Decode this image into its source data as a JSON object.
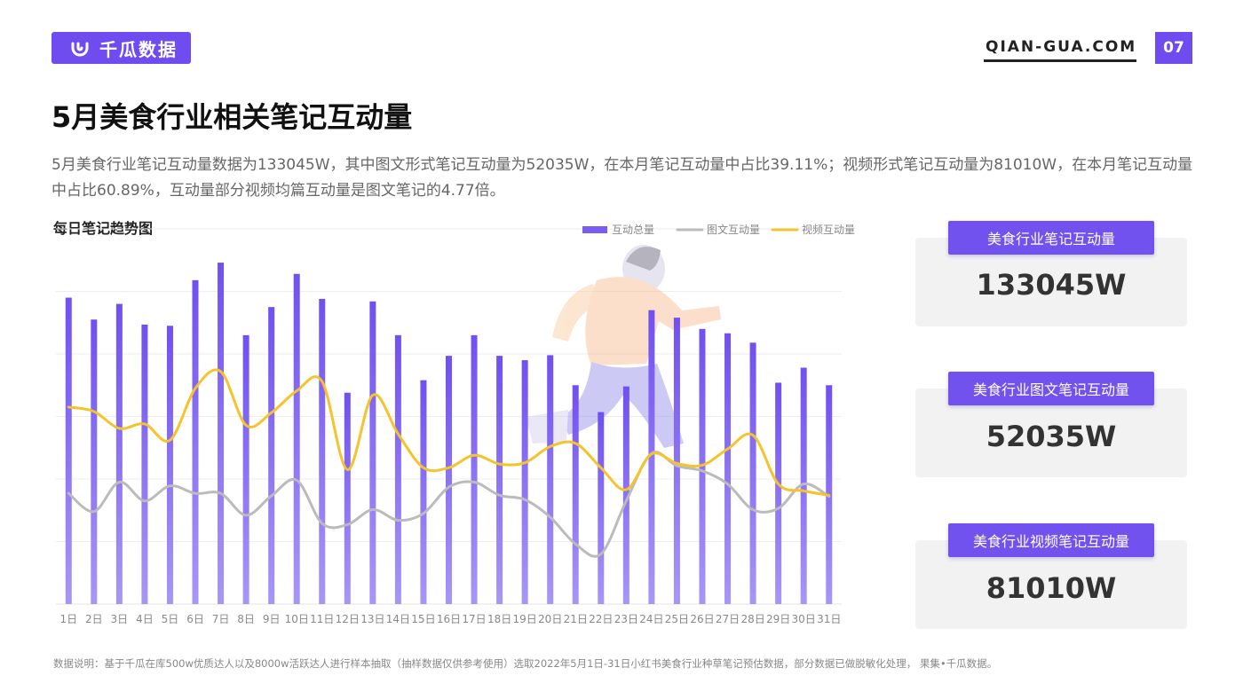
{
  "header": {
    "logo_text": "千瓜数据",
    "site": "QIAN-GUA.COM",
    "page_number": "07",
    "brand_color": "#6f4cf0"
  },
  "title": "5月美食行业相关笔记互动量",
  "description": "5月美食行业笔记互动量数据为133045W，其中图文形式笔记互动量为52035W，在本月笔记互动量中占比39.11%；视频形式笔记互动量为81010W，在本月笔记互动量中占比60.89%，互动量部分视频均篇互动量是图文笔记的4.77倍。",
  "chart_title": "每日笔记趋势图",
  "cards": [
    {
      "label": "美食行业笔记互动量",
      "value": "133045W"
    },
    {
      "label": "美食行业图文笔记互动量",
      "value": "52035W"
    },
    {
      "label": "美食行业视频笔记互动量",
      "value": "81010W"
    }
  ],
  "footnote": "数据说明：基于千瓜在库500w优质达人以及8000w活跃达人进行样本抽取（抽样数据仅供参考使用）选取2022年5月1日-31日小红书美食行业种草笔记预估数据，部分数据已做脱敏化处理， 果集•千瓜数据。",
  "chart_data": {
    "type": "bar",
    "categories": [
      "1日",
      "2日",
      "3日",
      "4日",
      "5日",
      "6日",
      "7日",
      "8日",
      "9日",
      "10日",
      "11日",
      "12日",
      "13日",
      "14日",
      "15日",
      "16日",
      "17日",
      "18日",
      "19日",
      "20日",
      "21日",
      "22日",
      "23日",
      "24日",
      "25日",
      "26日",
      "27日",
      "28日",
      "29日",
      "30日",
      "31日"
    ],
    "ylim": [
      0,
      60
    ],
    "grid": true,
    "legend_position": "top-right",
    "series": [
      {
        "name": "互动总量",
        "kind": "bar",
        "color": "#7b5cf0",
        "values": [
          49,
          45.5,
          48,
          44.7,
          44.5,
          51.8,
          54.6,
          43,
          47.5,
          52.8,
          48.8,
          33.8,
          48.4,
          43,
          35.8,
          39.7,
          43,
          39.7,
          39,
          39.8,
          35,
          30.7,
          34.8,
          47,
          45.8,
          44,
          43.3,
          41.8,
          35.4,
          37.8,
          35
        ]
      },
      {
        "name": "图文互动量",
        "kind": "line",
        "color": "#bbbbbb",
        "values": [
          17.7,
          14.8,
          19.5,
          16.5,
          18.9,
          17.7,
          17.7,
          14.2,
          17.3,
          19.8,
          12.9,
          12.7,
          15.1,
          13.4,
          14.5,
          18.7,
          19.5,
          17.4,
          16.7,
          13.9,
          9.6,
          8,
          16.5,
          24.1,
          22.1,
          21.3,
          19.2,
          15.1,
          15.3,
          19.2,
          17.2
        ]
      },
      {
        "name": "视频互动量",
        "kind": "line",
        "color": "#f5c32c",
        "values": [
          31.5,
          30.8,
          28.1,
          28.8,
          26.2,
          34.5,
          37.2,
          28.6,
          30.6,
          34.1,
          35.6,
          21.5,
          33.4,
          27.2,
          21.8,
          21.8,
          23.8,
          22.4,
          22.6,
          25.2,
          25.7,
          21.8,
          18.3,
          24,
          22.5,
          22.2,
          24.8,
          27,
          19.2,
          18.1,
          17.4
        ]
      }
    ]
  }
}
